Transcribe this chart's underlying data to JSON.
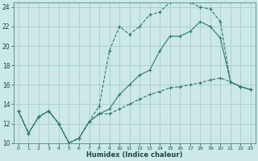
{
  "xlabel": "Humidex (Indice chaleur)",
  "bg_color": "#cce8e8",
  "grid_color": "#aacccc",
  "line_color": "#2d7a6a",
  "x_min": 0,
  "x_max": 23,
  "y_min": 10,
  "y_max": 24,
  "line1_x": [
    0,
    1,
    2,
    3,
    4,
    5,
    6,
    7,
    8,
    9,
    10,
    11,
    12,
    13,
    14,
    15,
    16,
    17,
    18,
    19,
    20,
    21,
    22,
    23
  ],
  "line1_y": [
    13.3,
    11.0,
    12.7,
    13.3,
    12.0,
    10.0,
    10.5,
    12.2,
    13.0,
    13.5,
    15.0,
    16.0,
    17.0,
    17.5,
    19.5,
    21.0,
    21.0,
    21.5,
    22.5,
    22.0,
    20.8,
    16.3,
    15.8,
    15.5
  ],
  "line2_x": [
    0,
    1,
    2,
    3,
    4,
    5,
    6,
    7,
    8,
    9,
    10,
    11,
    12,
    13,
    14,
    15,
    16,
    17,
    18,
    19,
    20,
    21,
    22,
    23
  ],
  "line2_y": [
    13.3,
    11.0,
    12.7,
    13.3,
    12.0,
    10.0,
    10.5,
    12.2,
    13.8,
    19.5,
    22.0,
    21.2,
    22.0,
    23.2,
    23.5,
    24.5,
    24.8,
    24.5,
    24.0,
    23.8,
    22.5,
    16.3,
    15.8,
    15.5
  ],
  "line3_x": [
    0,
    1,
    2,
    3,
    4,
    5,
    6,
    7,
    8,
    9,
    10,
    11,
    12,
    13,
    14,
    15,
    16,
    17,
    18,
    19,
    20,
    21,
    22,
    23
  ],
  "line3_y": [
    13.3,
    11.0,
    12.7,
    13.3,
    12.0,
    10.0,
    10.5,
    12.2,
    13.0,
    13.0,
    13.5,
    14.0,
    14.5,
    15.0,
    15.3,
    15.7,
    15.8,
    16.0,
    16.2,
    16.5,
    16.7,
    16.3,
    15.8,
    15.5
  ]
}
